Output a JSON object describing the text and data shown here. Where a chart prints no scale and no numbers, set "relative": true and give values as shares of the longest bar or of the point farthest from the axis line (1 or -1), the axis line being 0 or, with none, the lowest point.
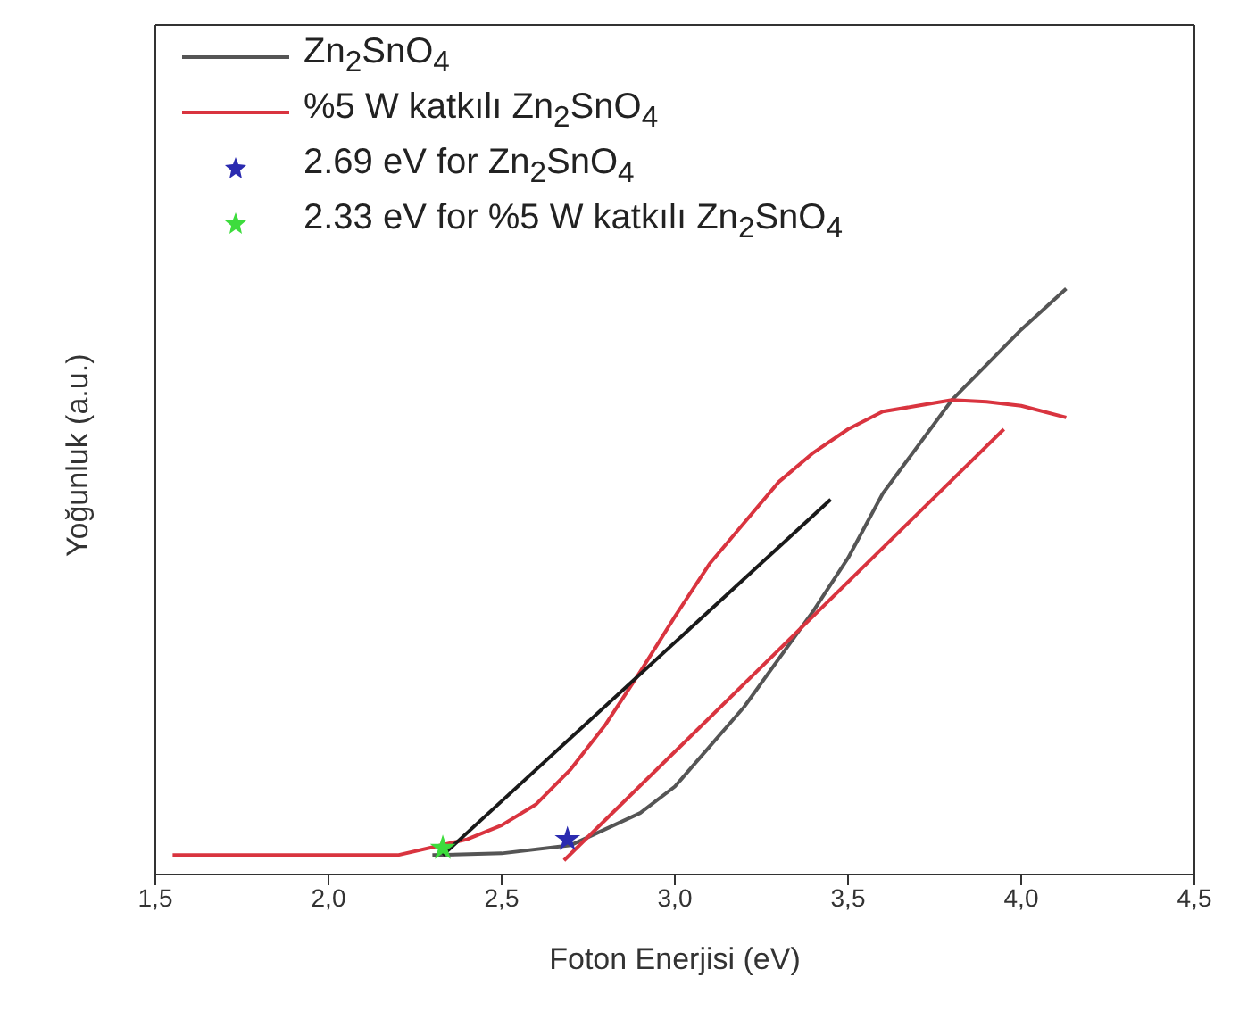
{
  "chart_data": {
    "type": "line",
    "relative": true,
    "xlabel": "Foton Enerjisi (eV)",
    "ylabel": "Yoğunluk (a.u.)",
    "xlim": [
      1.5,
      4.5
    ],
    "xticks": [
      {
        "value": 1.5,
        "label": "1,5"
      },
      {
        "value": 2.0,
        "label": "2,0"
      },
      {
        "value": 2.5,
        "label": "2,5"
      },
      {
        "value": 3.0,
        "label": "3,0"
      },
      {
        "value": 3.5,
        "label": "3,5"
      },
      {
        "value": 4.0,
        "label": "4,0"
      },
      {
        "value": 4.5,
        "label": "4,5"
      }
    ],
    "grid": false,
    "legend": "top left",
    "line_style": "solid",
    "series": [
      {
        "name": "Zn$_{2}$SnO$_{4}$",
        "color": "#555555",
        "marker": "none",
        "x": [
          2.3,
          2.5,
          2.7,
          2.9,
          3.0,
          3.2,
          3.4,
          3.5,
          3.6,
          3.8,
          3.9,
          4.0,
          4.13
        ],
        "values": [
          0.033,
          0.036,
          0.05,
          0.105,
          0.15,
          0.286,
          0.45,
          0.54,
          0.65,
          0.81,
          0.87,
          0.93,
          1
        ]
      },
      {
        "name": "%5 W katkılı Zn$_{2}$SnO$_{4}$",
        "color": "#d9343f",
        "marker": "none",
        "x": [
          1.55,
          2.2,
          2.4,
          2.5,
          2.6,
          2.7,
          2.8,
          2.9,
          3.0,
          3.1,
          3.2,
          3.3,
          3.4,
          3.5,
          3.6,
          3.7,
          3.8,
          3.9,
          4.0,
          4.13
        ],
        "values": [
          0.033,
          0.033,
          0.06,
          0.084,
          0.12,
          0.18,
          0.256,
          0.346,
          0.44,
          0.53,
          0.6,
          0.67,
          0.72,
          0.76,
          0.79,
          0.8,
          0.81,
          0.807,
          0.8,
          0.78
        ]
      },
      {
        "color": "#1a1a1a",
        "marker": "none",
        "x": [
          2.33,
          3.45
        ],
        "values": [
          0.033,
          0.64
        ]
      },
      {
        "color": "#d9343f",
        "marker": "none",
        "x": [
          2.68,
          3.95
        ],
        "values": [
          0.024,
          0.76
        ]
      },
      {
        "type": "scatter",
        "name": "2.69 eV for Zn$_{2}$SnO$_{4}$",
        "color": "#2b2bb0",
        "marker": "star",
        "x": [
          2.69
        ],
        "values": [
          0.06
        ]
      },
      {
        "type": "scatter",
        "name": "2.33 eV for %5 W katkılı Zn$_{2}$SnO$_{4}$",
        "color": "#3ddc3d",
        "marker": "star",
        "x": [
          2.33
        ],
        "values": [
          0.045
        ]
      }
    ]
  }
}
